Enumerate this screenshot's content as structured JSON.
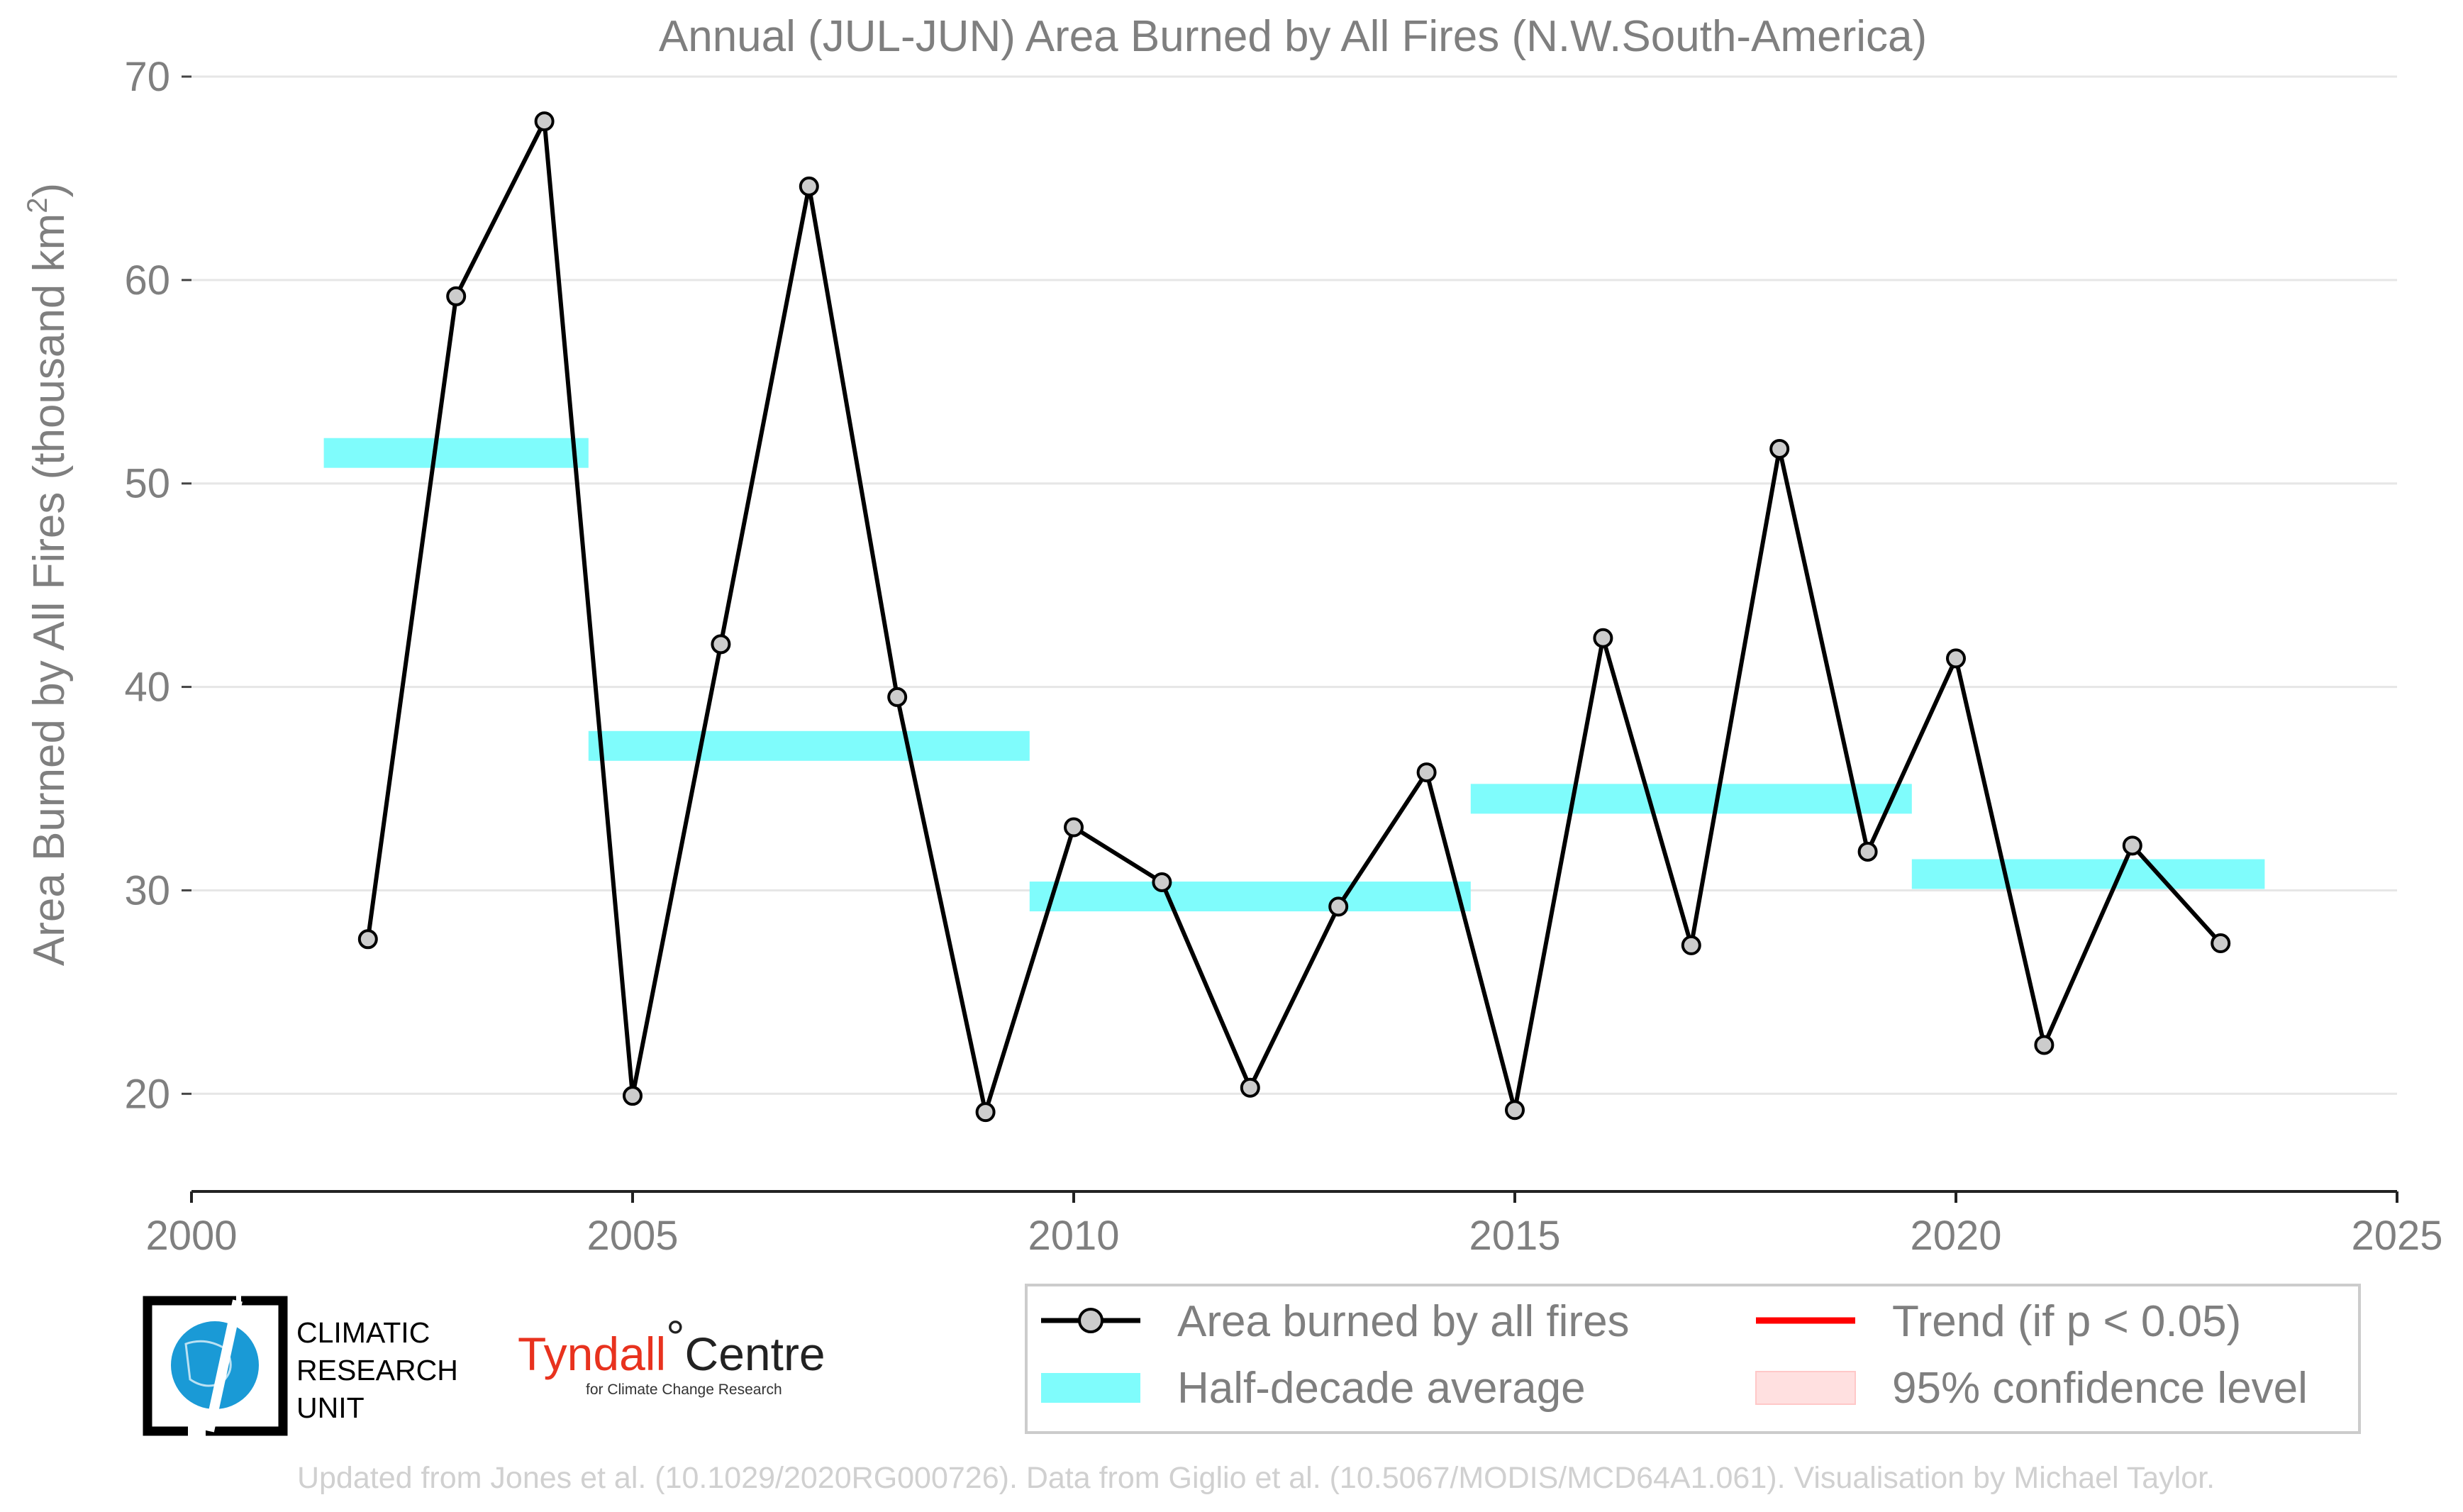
{
  "chart_data": {
    "type": "line",
    "title": "Annual (JUL-JUN) Area Burned by All Fires (N.W.South-America)",
    "ylabel": "Area Burned by All Fires (thousand km",
    "ylabel_sup": "2",
    "ylabel_close": ")",
    "xlabel": "",
    "xlim": [
      2000,
      2025
    ],
    "ylim": [
      15.2,
      70
    ],
    "x_ticks": [
      2000,
      2005,
      2010,
      2015,
      2020,
      2025
    ],
    "y_ticks": [
      20,
      30,
      40,
      50,
      60,
      70
    ],
    "grid": "horizontal",
    "series": [
      {
        "name": "Area burned by all fires",
        "color": "#000000",
        "marker_fill": "#cccccc",
        "x": [
          2002,
          2003,
          2004,
          2005,
          2006,
          2007,
          2008,
          2009,
          2010,
          2011,
          2012,
          2013,
          2014,
          2015,
          2016,
          2017,
          2018,
          2019,
          2020,
          2021,
          2022,
          2023
        ],
        "y": [
          27.6,
          59.2,
          67.8,
          19.9,
          42.1,
          64.6,
          39.5,
          19.1,
          33.1,
          30.4,
          20.3,
          29.2,
          35.8,
          19.2,
          42.4,
          27.3,
          51.7,
          31.9,
          41.4,
          22.4,
          32.2,
          27.4
        ]
      }
    ],
    "half_decade_average": {
      "name": "Half-decade average",
      "color": "#7ffcfc",
      "segments": [
        {
          "x_start": 2001.5,
          "x_end": 2004.5,
          "y": 51.5
        },
        {
          "x_start": 2004.5,
          "x_end": 2009.5,
          "y": 37.1
        },
        {
          "x_start": 2009.5,
          "x_end": 2014.5,
          "y": 29.7
        },
        {
          "x_start": 2014.5,
          "x_end": 2019.5,
          "y": 34.5
        },
        {
          "x_start": 2019.5,
          "x_end": 2023.5,
          "y": 30.8
        }
      ]
    },
    "legend": {
      "placement": "bottom-right",
      "entries": [
        {
          "label": "Area burned by all fires",
          "kind": "line-marker",
          "color": "#000000"
        },
        {
          "label": "Trend (if p < 0.05)",
          "kind": "line",
          "color": "#ff0000"
        },
        {
          "label": "Half-decade average",
          "kind": "patch",
          "color": "#7ffcfc"
        },
        {
          "label": "95% confidence level",
          "kind": "patch",
          "color": "#ffe0e0"
        }
      ]
    }
  },
  "logos": {
    "cru_lines": [
      "CLIMATIC",
      "RESEARCH",
      "UNIT"
    ],
    "tyndall_main": "Tyndall",
    "tyndall_degree": "°",
    "tyndall_centre": "Centre",
    "tyndall_sub": "for Climate Change Research"
  },
  "credit": "Updated from Jones et al. (10.1029/2020RG000726). Data from Giglio et al. (10.5067/MODIS/MCD64A1.061). Visualisation by Michael Taylor.",
  "colors": {
    "axis_text": "#7f7f7f",
    "grid": "#e6e6e6",
    "cru_blue": "#1a9ad6"
  }
}
